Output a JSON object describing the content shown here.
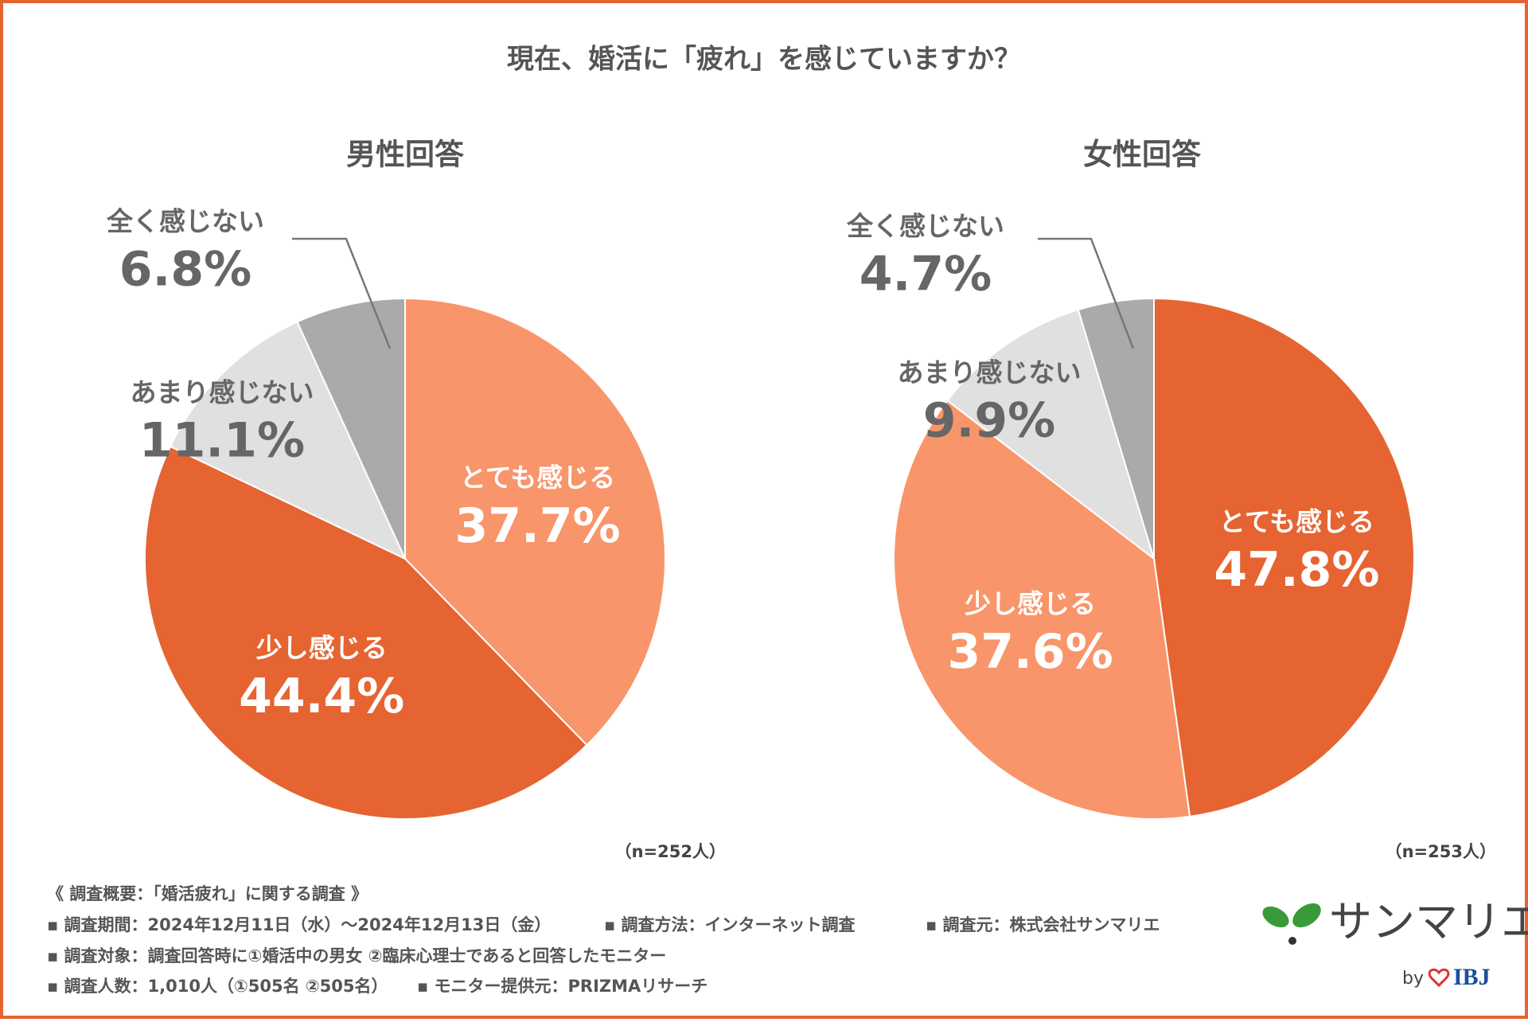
{
  "title": "現在、婚活に「疲れ」を感じていますか？",
  "chart_data": [
    {
      "type": "pie",
      "title": "男性回答",
      "note": "（n=252人）",
      "categories": [
        "とても感じる",
        "少し感じる",
        "あまり感じない",
        "全く感じない"
      ],
      "values": [
        37.7,
        44.4,
        11.1,
        6.8
      ],
      "value_labels": [
        "37.7%",
        "44.4%",
        "11.1%",
        "6.8%"
      ],
      "colors": [
        "#f9956a",
        "#e56431",
        "#e0e0e0",
        "#aaaaaa"
      ]
    },
    {
      "type": "pie",
      "title": "女性回答",
      "note": "（n=253人）",
      "categories": [
        "とても感じる",
        "少し感じる",
        "あまり感じない",
        "全く感じない"
      ],
      "values": [
        47.8,
        37.6,
        9.9,
        4.7
      ],
      "value_labels": [
        "47.8%",
        "37.6%",
        "9.9%",
        "4.7%"
      ],
      "colors": [
        "#e56431",
        "#f9956a",
        "#e0e0e0",
        "#aaaaaa"
      ]
    }
  ],
  "footer": {
    "lines": [
      [
        "《 調査概要：「婚活疲れ」に関する調査 》"
      ],
      [
        "▪ 調査期間：2024年12月11日（水）～2024年12月13日（金）",
        "▪ 調査方法：インターネット調査",
        "▪ 調査元：株式会社サンマリエ"
      ],
      [
        "▪ 調査対象：調査回答時に①婚活中の男女 ②臨床心理士であると回答したモニター"
      ],
      [
        "▪ 調査人数：1,010人（①505名 ②505名）",
        "▪ モニター提供元：PRIZMAリサーチ"
      ]
    ]
  },
  "logo": {
    "name": "サンマリエ",
    "by": "by",
    "brand": "IBJ"
  }
}
